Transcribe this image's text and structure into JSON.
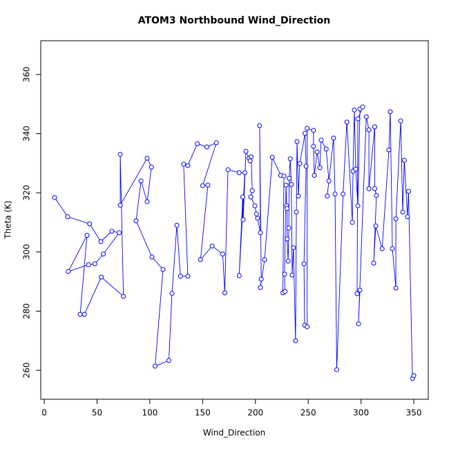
{
  "chart_data": {
    "type": "line",
    "title": "ATOM3 Northbound Wind_Direction",
    "x_label": "Wind_Direction",
    "y_label": "Theta (K)",
    "color": "#0000ff",
    "markers": true,
    "x": [
      9.8,
      22.2,
      43,
      53.6,
      64,
      71,
      56,
      48,
      42,
      22.8,
      40.5,
      34,
      38,
      54,
      75,
      72,
      72,
      97.5,
      101.5,
      97.5,
      91.6,
      87,
      102,
      112.5,
      105,
      118,
      121,
      125.6,
      129,
      136,
      132,
      136,
      145,
      154,
      163,
      150,
      155,
      148,
      159,
      169,
      171,
      174,
      184.6,
      190,
      184.6,
      188,
      188.4,
      191,
      194,
      195,
      196,
      197,
      195.6,
      199.5,
      201,
      202,
      204.7,
      204,
      205.5,
      204.7,
      208.7,
      216,
      224,
      227,
      226,
      228,
      227.6,
      229,
      229.6,
      230,
      230,
      231,
      231.6,
      232,
      233,
      234,
      234.8,
      236,
      238,
      238.8,
      239.4,
      240.7,
      242,
      247,
      248,
      246,
      246.6,
      249,
      249,
      255,
      255,
      255.8,
      258.4,
      261,
      262.3,
      267,
      269.6,
      268,
      274,
      275.4,
      277,
      283,
      286.6,
      291.8,
      292.4,
      293.7,
      295,
      297,
      299,
      301.5,
      297,
      296.3,
      299,
      297.6,
      305,
      307.5,
      307.5,
      313,
      313,
      314.6,
      312,
      314,
      320,
      326.4,
      327.7,
      329.7,
      333,
      333,
      337.6,
      339.5,
      341,
      344,
      345,
      348.7,
      350
    ],
    "values": [
      318.4,
      311.9,
      309.5,
      303.5,
      307,
      306.5,
      299.3,
      296,
      295.7,
      293.4,
      305.6,
      278.9,
      278.9,
      291.5,
      285,
      333,
      315.8,
      331.7,
      328.7,
      317,
      324,
      310.5,
      298.3,
      294.1,
      261.4,
      263.3,
      286,
      309,
      291.8,
      291.8,
      329.7,
      329.2,
      336.6,
      335.5,
      336.9,
      322.4,
      322.6,
      297.4,
      302,
      299.3,
      286.2,
      327.8,
      326.8,
      326.8,
      292,
      318.6,
      310.9,
      334,
      331.7,
      330.8,
      332.2,
      320.7,
      318.6,
      315.6,
      312.8,
      311.4,
      306.5,
      342.7,
      290.8,
      288,
      297.4,
      332,
      325.9,
      325.7,
      286.2,
      286.6,
      292.5,
      322.6,
      315.6,
      314.7,
      304.4,
      296.9,
      308.1,
      324.9,
      331.5,
      322.8,
      292.2,
      301.4,
      270,
      313.5,
      337.3,
      318.9,
      329.9,
      340.1,
      329,
      296,
      275.2,
      274.7,
      341.8,
      341.1,
      335.7,
      325.9,
      333.8,
      328.5,
      337.8,
      334.8,
      324,
      318.9,
      338.5,
      319.6,
      260.2,
      319.6,
      343.9,
      310,
      327.3,
      348,
      328,
      315.6,
      348.3,
      349,
      345,
      285.9,
      287.1,
      275.7,
      345.7,
      341.3,
      321.4,
      342.3,
      321.4,
      319.1,
      296.2,
      308.8,
      301.1,
      334.5,
      347.4,
      301.1,
      287.8,
      311.2,
      344.3,
      313.5,
      331,
      311.9,
      320.5,
      257.2,
      258.2
    ],
    "xlim": [
      -3.3,
      363.7
    ],
    "ylim": [
      250.2,
      371.4
    ],
    "xticks": [
      0,
      50,
      100,
      150,
      200,
      250,
      300,
      350
    ],
    "yticks": [
      260,
      280,
      300,
      320,
      340,
      360
    ]
  }
}
